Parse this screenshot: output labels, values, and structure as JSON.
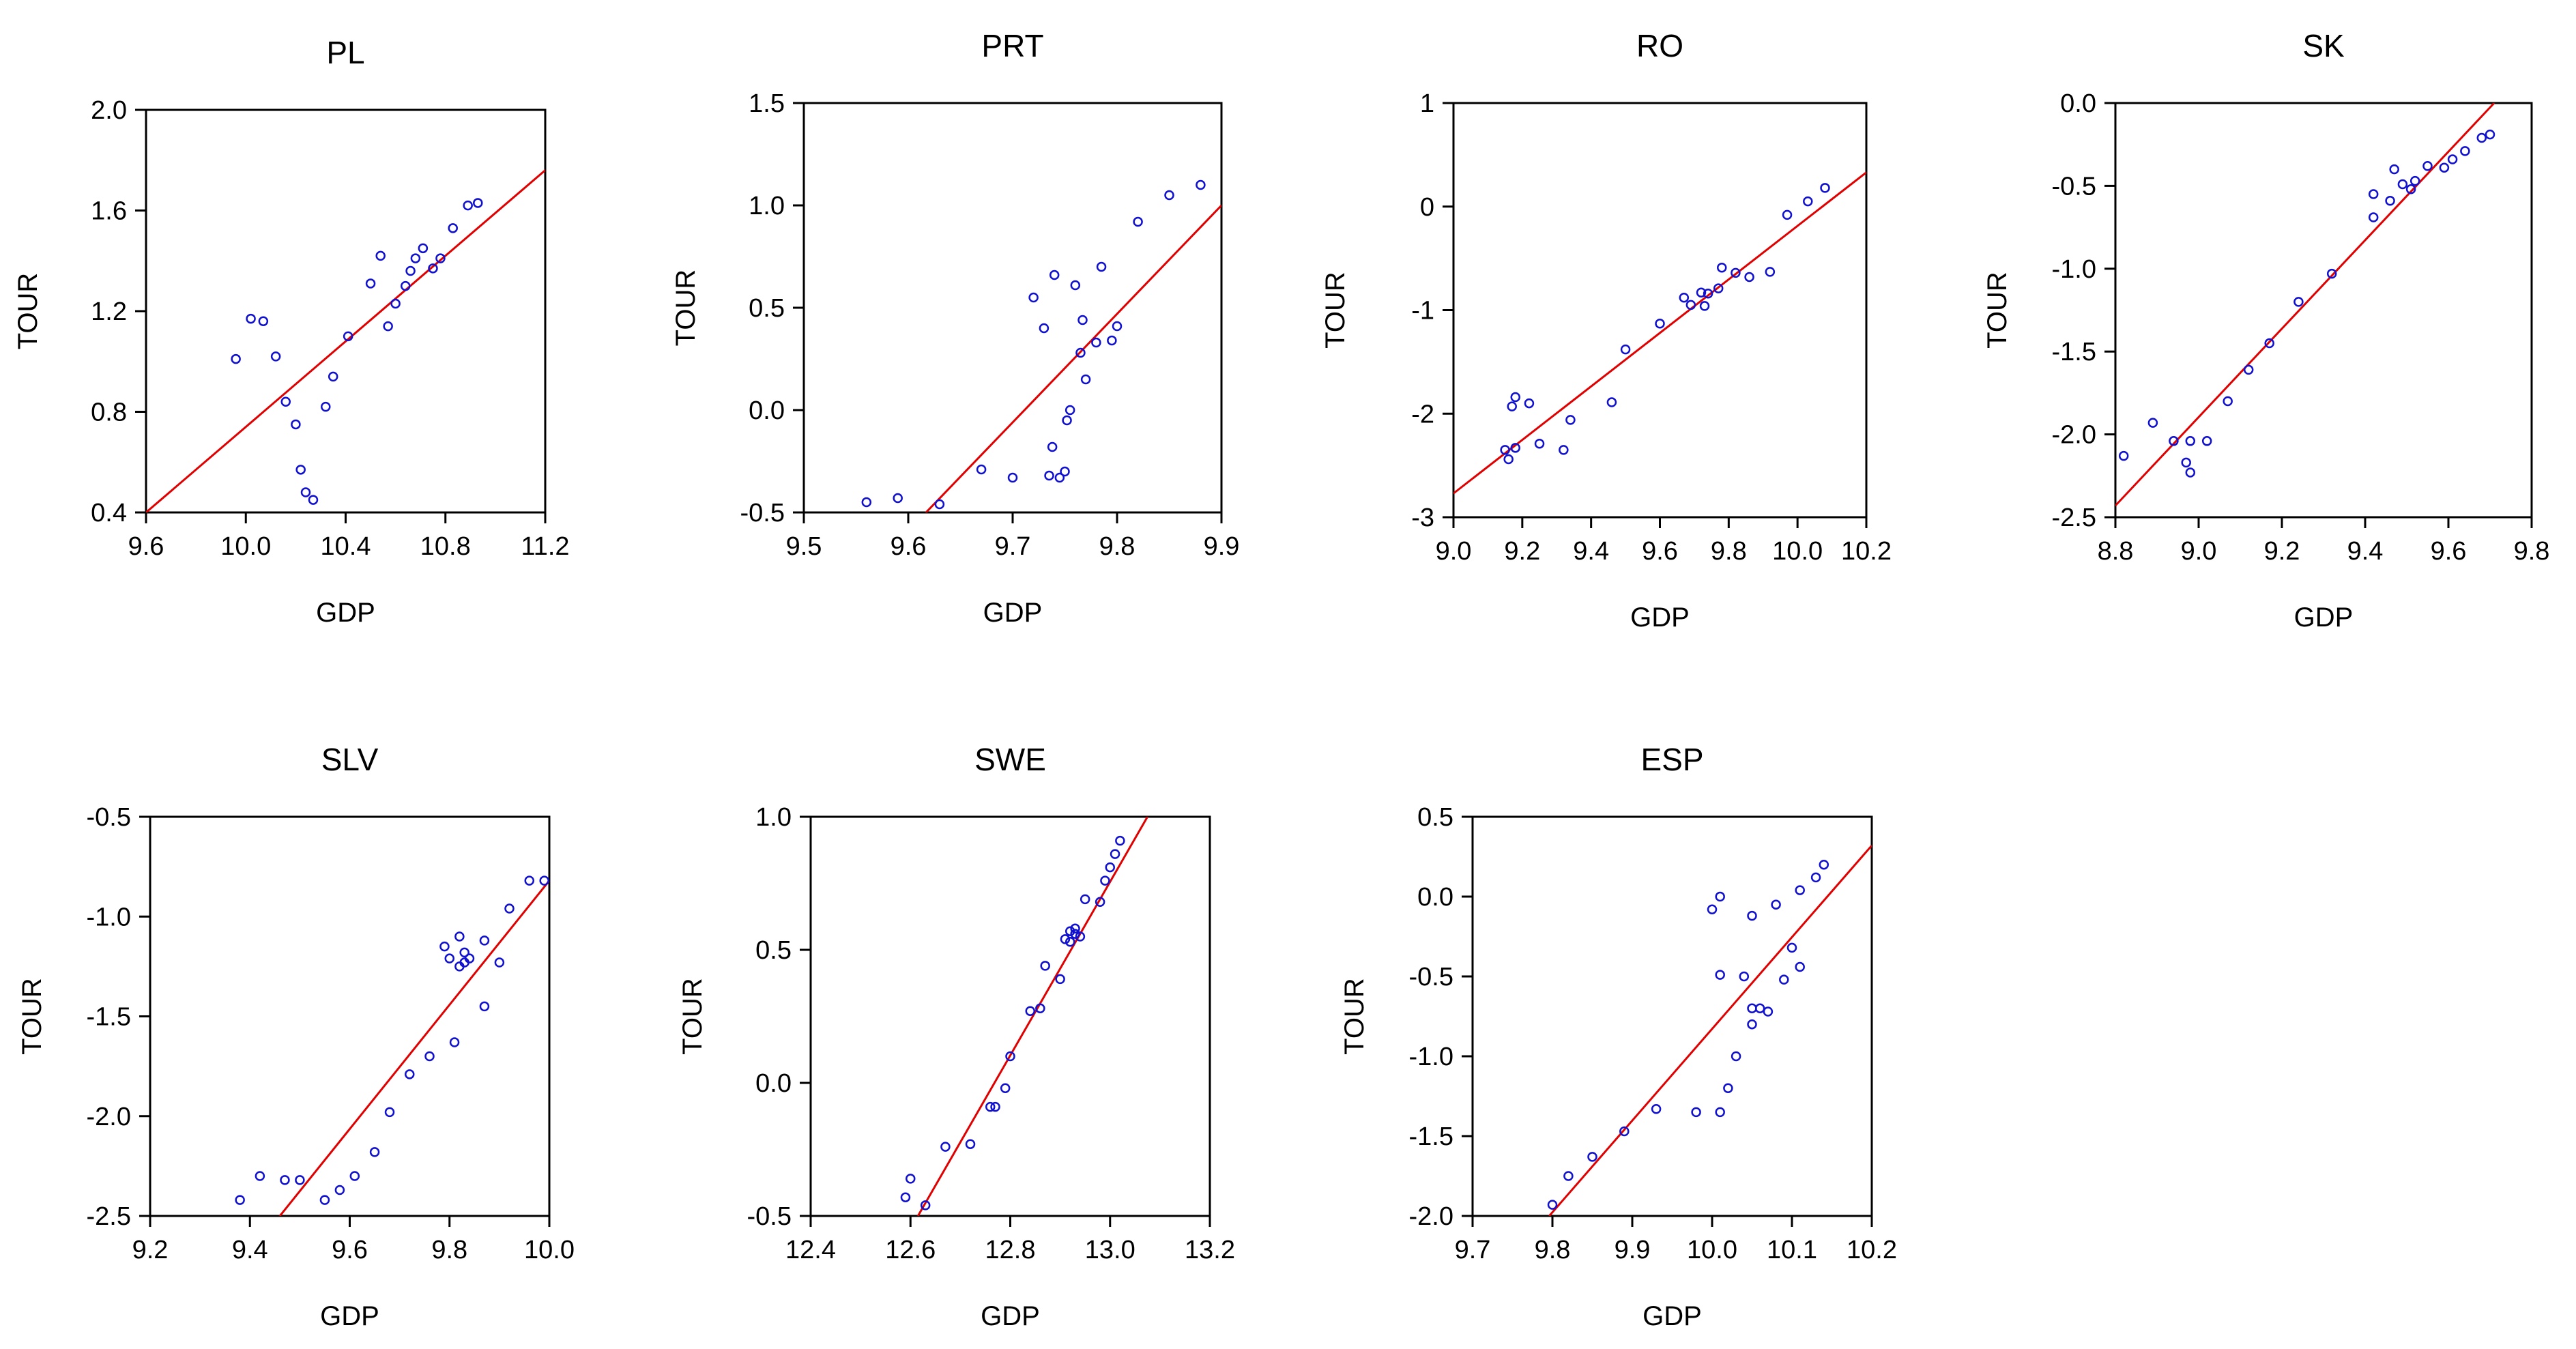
{
  "colors": {
    "points": "#1010d0",
    "fit_line": "#e00000",
    "axes": "#000000"
  },
  "chart_data": [
    {
      "type": "scatter",
      "title": "PL",
      "xlabel": "GDP",
      "ylabel": "TOUR",
      "xlim": [
        9.6,
        11.2
      ],
      "ylim": [
        0.4,
        2.0
      ],
      "xticks": [
        9.6,
        10.0,
        10.4,
        10.8,
        11.2
      ],
      "xtick_labels": [
        "9.6",
        "10.0",
        "10.4",
        "10.8",
        "11.2"
      ],
      "yticks": [
        0.4,
        0.8,
        1.2,
        1.6,
        2.0
      ],
      "ytick_labels": [
        "0.4",
        "0.8",
        "1.2",
        "1.6",
        "2.0"
      ],
      "fit_line": [
        [
          9.6,
          0.4
        ],
        [
          11.2,
          1.76
        ]
      ],
      "points": [
        [
          9.96,
          1.01
        ],
        [
          10.02,
          1.17
        ],
        [
          10.07,
          1.16
        ],
        [
          10.12,
          1.02
        ],
        [
          10.16,
          0.84
        ],
        [
          10.2,
          0.75
        ],
        [
          10.22,
          0.57
        ],
        [
          10.24,
          0.48
        ],
        [
          10.27,
          0.45
        ],
        [
          10.32,
          0.82
        ],
        [
          10.35,
          0.94
        ],
        [
          10.41,
          1.1
        ],
        [
          10.5,
          1.31
        ],
        [
          10.54,
          1.42
        ],
        [
          10.57,
          1.14
        ],
        [
          10.6,
          1.23
        ],
        [
          10.64,
          1.3
        ],
        [
          10.66,
          1.36
        ],
        [
          10.68,
          1.41
        ],
        [
          10.71,
          1.45
        ],
        [
          10.75,
          1.37
        ],
        [
          10.78,
          1.41
        ],
        [
          10.83,
          1.53
        ],
        [
          10.89,
          1.62
        ],
        [
          10.93,
          1.63
        ]
      ]
    },
    {
      "type": "scatter",
      "title": "PRT",
      "xlabel": "GDP",
      "ylabel": "TOUR",
      "xlim": [
        9.5,
        9.9
      ],
      "ylim": [
        -0.5,
        1.5
      ],
      "xticks": [
        9.5,
        9.6,
        9.7,
        9.8,
        9.9
      ],
      "xtick_labels": [
        "9.5",
        "9.6",
        "9.7",
        "9.8",
        "9.9"
      ],
      "yticks": [
        -0.5,
        0.0,
        0.5,
        1.0,
        1.5
      ],
      "ytick_labels": [
        "-0.5",
        "0.0",
        "0.5",
        "1.0",
        "1.5"
      ],
      "fit_line": [
        [
          9.617,
          -0.5
        ],
        [
          9.9,
          1.0
        ]
      ],
      "points": [
        [
          9.56,
          -0.45
        ],
        [
          9.59,
          -0.43
        ],
        [
          9.63,
          -0.46
        ],
        [
          9.67,
          -0.29
        ],
        [
          9.7,
          -0.33
        ],
        [
          9.72,
          0.55
        ],
        [
          9.73,
          0.4
        ],
        [
          9.735,
          -0.32
        ],
        [
          9.738,
          -0.18
        ],
        [
          9.74,
          0.66
        ],
        [
          9.745,
          -0.33
        ],
        [
          9.75,
          -0.3
        ],
        [
          9.752,
          -0.05
        ],
        [
          9.755,
          0.0
        ],
        [
          9.76,
          0.61
        ],
        [
          9.765,
          0.28
        ],
        [
          9.767,
          0.44
        ],
        [
          9.77,
          0.15
        ],
        [
          9.78,
          0.33
        ],
        [
          9.785,
          0.7
        ],
        [
          9.795,
          0.34
        ],
        [
          9.8,
          0.41
        ],
        [
          9.82,
          0.92
        ],
        [
          9.85,
          1.05
        ],
        [
          9.88,
          1.1
        ]
      ]
    },
    {
      "type": "scatter",
      "title": "RO",
      "xlabel": "GDP",
      "ylabel": "TOUR",
      "xlim": [
        9.0,
        10.2
      ],
      "ylim": [
        -3.0,
        1.0
      ],
      "xticks": [
        9.0,
        9.2,
        9.4,
        9.6,
        9.8,
        10.0,
        10.2
      ],
      "xtick_labels": [
        "9.0",
        "9.2",
        "9.4",
        "9.6",
        "9.8",
        "10.0",
        "10.2"
      ],
      "yticks": [
        -3,
        -2,
        -1,
        0,
        1
      ],
      "ytick_labels": [
        "-3",
        "-2",
        "-1",
        "0",
        "1"
      ],
      "fit_line": [
        [
          9.0,
          -2.77
        ],
        [
          10.2,
          0.33
        ]
      ],
      "points": [
        [
          9.15,
          -2.35
        ],
        [
          9.16,
          -2.44
        ],
        [
          9.17,
          -1.93
        ],
        [
          9.18,
          -1.84
        ],
        [
          9.18,
          -2.33
        ],
        [
          9.22,
          -1.9
        ],
        [
          9.25,
          -2.29
        ],
        [
          9.32,
          -2.35
        ],
        [
          9.34,
          -2.06
        ],
        [
          9.5,
          -1.38
        ],
        [
          9.46,
          -1.89
        ],
        [
          9.6,
          -1.13
        ],
        [
          9.67,
          -0.88
        ],
        [
          9.69,
          -0.95
        ],
        [
          9.72,
          -0.83
        ],
        [
          9.73,
          -0.96
        ],
        [
          9.74,
          -0.84
        ],
        [
          9.77,
          -0.79
        ],
        [
          9.78,
          -0.59
        ],
        [
          9.82,
          -0.64
        ],
        [
          9.86,
          -0.68
        ],
        [
          9.92,
          -0.63
        ],
        [
          9.97,
          -0.08
        ],
        [
          10.03,
          0.05
        ],
        [
          10.08,
          0.18
        ]
      ]
    },
    {
      "type": "scatter",
      "title": "SK",
      "xlabel": "GDP",
      "ylabel": "TOUR",
      "xlim": [
        8.8,
        9.8
      ],
      "ylim": [
        -2.5,
        0.0
      ],
      "xticks": [
        8.8,
        9.0,
        9.2,
        9.4,
        9.6,
        9.8
      ],
      "xtick_labels": [
        "8.8",
        "9.0",
        "9.2",
        "9.4",
        "9.6",
        "9.8"
      ],
      "yticks": [
        -2.5,
        -2.0,
        -1.5,
        -1.0,
        -0.5,
        0.0
      ],
      "ytick_labels": [
        "-2.5",
        "-2.0",
        "-1.5",
        "-1.0",
        "-0.5",
        "0.0"
      ],
      "fit_line": [
        [
          8.8,
          -2.43
        ],
        [
          9.71,
          0.0
        ]
      ],
      "points": [
        [
          8.82,
          -2.13
        ],
        [
          8.89,
          -1.93
        ],
        [
          8.94,
          -2.04
        ],
        [
          8.97,
          -2.17
        ],
        [
          8.98,
          -2.23
        ],
        [
          8.98,
          -2.04
        ],
        [
          9.02,
          -2.04
        ],
        [
          9.07,
          -1.8
        ],
        [
          9.12,
          -1.61
        ],
        [
          9.17,
          -1.45
        ],
        [
          9.24,
          -1.2
        ],
        [
          9.32,
          -1.03
        ],
        [
          9.42,
          -0.69
        ],
        [
          9.42,
          -0.55
        ],
        [
          9.46,
          -0.59
        ],
        [
          9.47,
          -0.4
        ],
        [
          9.49,
          -0.49
        ],
        [
          9.51,
          -0.52
        ],
        [
          9.52,
          -0.47
        ],
        [
          9.55,
          -0.38
        ],
        [
          9.59,
          -0.39
        ],
        [
          9.61,
          -0.34
        ],
        [
          9.64,
          -0.29
        ],
        [
          9.68,
          -0.21
        ],
        [
          9.7,
          -0.19
        ]
      ]
    },
    {
      "type": "scatter",
      "title": "SLV",
      "xlabel": "GDP",
      "ylabel": "TOUR",
      "xlim": [
        9.2,
        10.0
      ],
      "ylim": [
        -2.5,
        -0.5
      ],
      "xticks": [
        9.2,
        9.4,
        9.6,
        9.8,
        10.0
      ],
      "xtick_labels": [
        "9.2",
        "9.4",
        "9.6",
        "9.8",
        "10.0"
      ],
      "yticks": [
        -2.5,
        -2.0,
        -1.5,
        -1.0,
        -0.5
      ],
      "ytick_labels": [
        "-2.5",
        "-2.0",
        "-1.5",
        "-1.0",
        "-0.5"
      ],
      "fit_line": [
        [
          9.46,
          -2.5
        ],
        [
          10.0,
          -0.82
        ]
      ],
      "points": [
        [
          9.38,
          -2.42
        ],
        [
          9.42,
          -2.3
        ],
        [
          9.47,
          -2.32
        ],
        [
          9.5,
          -2.32
        ],
        [
          9.55,
          -2.42
        ],
        [
          9.58,
          -2.37
        ],
        [
          9.61,
          -2.3
        ],
        [
          9.65,
          -2.18
        ],
        [
          9.68,
          -1.98
        ],
        [
          9.72,
          -1.79
        ],
        [
          9.76,
          -1.7
        ],
        [
          9.79,
          -1.15
        ],
        [
          9.8,
          -1.21
        ],
        [
          9.81,
          -1.63
        ],
        [
          9.82,
          -1.1
        ],
        [
          9.82,
          -1.25
        ],
        [
          9.83,
          -1.18
        ],
        [
          9.83,
          -1.23
        ],
        [
          9.84,
          -1.21
        ],
        [
          9.87,
          -1.12
        ],
        [
          9.87,
          -1.45
        ],
        [
          9.9,
          -1.23
        ],
        [
          9.92,
          -0.96
        ],
        [
          9.96,
          -0.82
        ],
        [
          9.99,
          -0.82
        ]
      ]
    },
    {
      "type": "scatter",
      "title": "SWE",
      "xlabel": "GDP",
      "ylabel": "TOUR",
      "xlim": [
        12.4,
        13.2
      ],
      "ylim": [
        -0.5,
        1.0
      ],
      "xticks": [
        12.4,
        12.6,
        12.8,
        13.0,
        13.2
      ],
      "xtick_labels": [
        "12.4",
        "12.6",
        "12.8",
        "13.0",
        "13.2"
      ],
      "yticks": [
        -0.5,
        0.0,
        0.5,
        1.0
      ],
      "ytick_labels": [
        "-0.5",
        "0.0",
        "0.5",
        "1.0"
      ],
      "fit_line": [
        [
          12.615,
          -0.5
        ],
        [
          13.075,
          1.0
        ]
      ],
      "points": [
        [
          12.59,
          -0.43
        ],
        [
          12.6,
          -0.36
        ],
        [
          12.63,
          -0.46
        ],
        [
          12.67,
          -0.24
        ],
        [
          12.72,
          -0.23
        ],
        [
          12.76,
          -0.09
        ],
        [
          12.77,
          -0.09
        ],
        [
          12.79,
          -0.02
        ],
        [
          12.8,
          0.1
        ],
        [
          12.84,
          0.27
        ],
        [
          12.86,
          0.28
        ],
        [
          12.87,
          0.44
        ],
        [
          12.9,
          0.39
        ],
        [
          12.91,
          0.54
        ],
        [
          12.92,
          0.57
        ],
        [
          12.92,
          0.53
        ],
        [
          12.93,
          0.58
        ],
        [
          12.93,
          0.56
        ],
        [
          12.94,
          0.55
        ],
        [
          12.95,
          0.69
        ],
        [
          12.98,
          0.68
        ],
        [
          12.99,
          0.76
        ],
        [
          13.0,
          0.81
        ],
        [
          13.01,
          0.86
        ],
        [
          13.02,
          0.91
        ]
      ]
    },
    {
      "type": "scatter",
      "title": "ESP",
      "xlabel": "GDP",
      "ylabel": "TOUR",
      "xlim": [
        9.7,
        10.2
      ],
      "ylim": [
        -2.0,
        0.5
      ],
      "xticks": [
        9.7,
        9.8,
        9.9,
        10.0,
        10.1,
        10.2
      ],
      "xtick_labels": [
        "9.7",
        "9.8",
        "9.9",
        "10.0",
        "10.1",
        "10.2"
      ],
      "yticks": [
        -2.0,
        -1.5,
        -1.0,
        -0.5,
        0.0,
        0.5
      ],
      "ytick_labels": [
        "-2.0",
        "-1.5",
        "-1.0",
        "-0.5",
        "0.0",
        "0.5"
      ],
      "fit_line": [
        [
          9.796,
          -2.0
        ],
        [
          10.2,
          0.32
        ]
      ],
      "points": [
        [
          9.8,
          -1.93
        ],
        [
          9.82,
          -1.75
        ],
        [
          9.85,
          -1.63
        ],
        [
          9.89,
          -1.47
        ],
        [
          9.93,
          -1.33
        ],
        [
          9.98,
          -1.35
        ],
        [
          10.0,
          -0.08
        ],
        [
          10.01,
          -0.49
        ],
        [
          10.01,
          0.0
        ],
        [
          10.01,
          -1.35
        ],
        [
          10.02,
          -1.2
        ],
        [
          10.03,
          -1.0
        ],
        [
          10.04,
          -0.5
        ],
        [
          10.05,
          -0.7
        ],
        [
          10.05,
          -0.8
        ],
        [
          10.05,
          -0.12
        ],
        [
          10.06,
          -0.7
        ],
        [
          10.07,
          -0.72
        ],
        [
          10.08,
          -0.05
        ],
        [
          10.09,
          -0.52
        ],
        [
          10.1,
          -0.32
        ],
        [
          10.11,
          -0.44
        ],
        [
          10.11,
          0.04
        ],
        [
          10.13,
          0.12
        ],
        [
          10.14,
          0.2
        ]
      ]
    }
  ]
}
